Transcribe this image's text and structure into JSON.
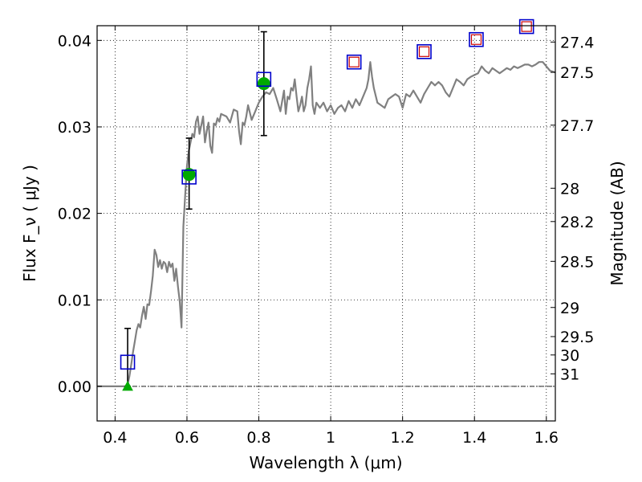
{
  "chart_data": {
    "type": "line",
    "xlabel": "Wavelength  λ (μm)",
    "ylabel_left": "Flux  F_ν  ( μJy )",
    "ylabel_right": "Magnitude (AB)",
    "xlim": [
      0.35,
      1.625
    ],
    "ylim": [
      -0.004,
      0.0417
    ],
    "grid": true,
    "x_ticks": [
      {
        "value": 0.4,
        "label": "0.4"
      },
      {
        "value": 0.6,
        "label": "0.6"
      },
      {
        "value": 0.8,
        "label": "0.8"
      },
      {
        "value": 1.0,
        "label": "1"
      },
      {
        "value": 1.2,
        "label": "1.2"
      },
      {
        "value": 1.4,
        "label": "1.4"
      },
      {
        "value": 1.6,
        "label": "1.6"
      }
    ],
    "y_ticks": [
      {
        "value": 0.0,
        "label": "0.00"
      },
      {
        "value": 0.01,
        "label": "0.01"
      },
      {
        "value": 0.02,
        "label": "0.02"
      },
      {
        "value": 0.03,
        "label": "0.03"
      },
      {
        "value": 0.04,
        "label": "0.04"
      }
    ],
    "mag_ticks": [
      {
        "mag": 27.4,
        "label": "27.4"
      },
      {
        "mag": 27.5,
        "label": "27.5"
      },
      {
        "mag": 27.7,
        "label": "27.7"
      },
      {
        "mag": 28.0,
        "label": "28"
      },
      {
        "mag": 28.2,
        "label": "28.2"
      },
      {
        "mag": 28.5,
        "label": "28.5"
      },
      {
        "mag": 29.0,
        "label": "29"
      },
      {
        "mag": 29.5,
        "label": "29.5"
      },
      {
        "mag": 30.0,
        "label": "30"
      },
      {
        "mag": 31.0,
        "label": "31"
      }
    ],
    "colors": {
      "spectrum": "#808080",
      "box_outer": "#0000cc",
      "box_inner": "#cc0000",
      "detection": "#00aa00",
      "errorbar": "#000000",
      "zero_line": "#000000"
    },
    "series": [
      {
        "kind": "spectrum",
        "points": [
          [
            0.35,
            0.0
          ],
          [
            0.43,
            0.0
          ],
          [
            0.435,
            0.0002
          ],
          [
            0.44,
            0.0012
          ],
          [
            0.445,
            0.0025
          ],
          [
            0.45,
            0.004
          ],
          [
            0.455,
            0.0052
          ],
          [
            0.46,
            0.0065
          ],
          [
            0.465,
            0.0072
          ],
          [
            0.47,
            0.0068
          ],
          [
            0.475,
            0.0082
          ],
          [
            0.48,
            0.0092
          ],
          [
            0.485,
            0.0078
          ],
          [
            0.49,
            0.0095
          ],
          [
            0.495,
            0.0094
          ],
          [
            0.5,
            0.011
          ],
          [
            0.505,
            0.0128
          ],
          [
            0.51,
            0.0158
          ],
          [
            0.515,
            0.0152
          ],
          [
            0.52,
            0.0138
          ],
          [
            0.525,
            0.0146
          ],
          [
            0.53,
            0.0136
          ],
          [
            0.535,
            0.0144
          ],
          [
            0.54,
            0.0142
          ],
          [
            0.545,
            0.0132
          ],
          [
            0.55,
            0.0144
          ],
          [
            0.555,
            0.0138
          ],
          [
            0.56,
            0.0142
          ],
          [
            0.565,
            0.0122
          ],
          [
            0.57,
            0.0136
          ],
          [
            0.575,
            0.0115
          ],
          [
            0.58,
            0.0098
          ],
          [
            0.585,
            0.0068
          ],
          [
            0.59,
            0.0185
          ],
          [
            0.595,
            0.022
          ],
          [
            0.6,
            0.0255
          ],
          [
            0.605,
            0.0272
          ],
          [
            0.61,
            0.0282
          ],
          [
            0.615,
            0.0292
          ],
          [
            0.62,
            0.0288
          ],
          [
            0.625,
            0.0306
          ],
          [
            0.63,
            0.0312
          ],
          [
            0.635,
            0.0292
          ],
          [
            0.64,
            0.0302
          ],
          [
            0.645,
            0.0312
          ],
          [
            0.65,
            0.0282
          ],
          [
            0.655,
            0.0295
          ],
          [
            0.66,
            0.0305
          ],
          [
            0.665,
            0.0278
          ],
          [
            0.67,
            0.027
          ],
          [
            0.675,
            0.0304
          ],
          [
            0.68,
            0.0302
          ],
          [
            0.685,
            0.031
          ],
          [
            0.69,
            0.0306
          ],
          [
            0.695,
            0.0315
          ],
          [
            0.7,
            0.0314
          ],
          [
            0.71,
            0.0312
          ],
          [
            0.72,
            0.0305
          ],
          [
            0.73,
            0.032
          ],
          [
            0.74,
            0.0318
          ],
          [
            0.745,
            0.0295
          ],
          [
            0.75,
            0.028
          ],
          [
            0.755,
            0.0305
          ],
          [
            0.76,
            0.0302
          ],
          [
            0.765,
            0.0312
          ],
          [
            0.77,
            0.0325
          ],
          [
            0.78,
            0.0308
          ],
          [
            0.79,
            0.0318
          ],
          [
            0.8,
            0.0328
          ],
          [
            0.81,
            0.0335
          ],
          [
            0.82,
            0.034
          ],
          [
            0.83,
            0.0338
          ],
          [
            0.84,
            0.0345
          ],
          [
            0.85,
            0.0332
          ],
          [
            0.86,
            0.0318
          ],
          [
            0.87,
            0.0342
          ],
          [
            0.875,
            0.0315
          ],
          [
            0.88,
            0.0335
          ],
          [
            0.885,
            0.0332
          ],
          [
            0.89,
            0.0345
          ],
          [
            0.895,
            0.0342
          ],
          [
            0.9,
            0.0355
          ],
          [
            0.905,
            0.0335
          ],
          [
            0.91,
            0.0318
          ],
          [
            0.915,
            0.0325
          ],
          [
            0.92,
            0.0335
          ],
          [
            0.925,
            0.0318
          ],
          [
            0.93,
            0.0325
          ],
          [
            0.935,
            0.0345
          ],
          [
            0.94,
            0.0355
          ],
          [
            0.945,
            0.037
          ],
          [
            0.95,
            0.0325
          ],
          [
            0.955,
            0.0315
          ],
          [
            0.96,
            0.0328
          ],
          [
            0.97,
            0.0322
          ],
          [
            0.98,
            0.0328
          ],
          [
            0.99,
            0.0318
          ],
          [
            1.0,
            0.0325
          ],
          [
            1.01,
            0.0315
          ],
          [
            1.02,
            0.0322
          ],
          [
            1.03,
            0.0325
          ],
          [
            1.04,
            0.0318
          ],
          [
            1.05,
            0.033
          ],
          [
            1.06,
            0.0322
          ],
          [
            1.07,
            0.0332
          ],
          [
            1.08,
            0.0325
          ],
          [
            1.09,
            0.0335
          ],
          [
            1.1,
            0.0345
          ],
          [
            1.105,
            0.0355
          ],
          [
            1.11,
            0.0375
          ],
          [
            1.115,
            0.0358
          ],
          [
            1.12,
            0.0345
          ],
          [
            1.13,
            0.0328
          ],
          [
            1.14,
            0.0325
          ],
          [
            1.15,
            0.0322
          ],
          [
            1.16,
            0.0332
          ],
          [
            1.17,
            0.0335
          ],
          [
            1.18,
            0.0338
          ],
          [
            1.19,
            0.0335
          ],
          [
            1.2,
            0.0322
          ],
          [
            1.21,
            0.0338
          ],
          [
            1.22,
            0.0335
          ],
          [
            1.23,
            0.0342
          ],
          [
            1.24,
            0.0335
          ],
          [
            1.25,
            0.0328
          ],
          [
            1.26,
            0.0338
          ],
          [
            1.27,
            0.0345
          ],
          [
            1.28,
            0.0352
          ],
          [
            1.29,
            0.0348
          ],
          [
            1.3,
            0.0352
          ],
          [
            1.31,
            0.0348
          ],
          [
            1.32,
            0.034
          ],
          [
            1.33,
            0.0335
          ],
          [
            1.34,
            0.0345
          ],
          [
            1.35,
            0.0355
          ],
          [
            1.36,
            0.0352
          ],
          [
            1.37,
            0.0348
          ],
          [
            1.38,
            0.0355
          ],
          [
            1.39,
            0.0358
          ],
          [
            1.4,
            0.036
          ],
          [
            1.41,
            0.0362
          ],
          [
            1.42,
            0.037
          ],
          [
            1.43,
            0.0365
          ],
          [
            1.44,
            0.0362
          ],
          [
            1.45,
            0.0368
          ],
          [
            1.46,
            0.0365
          ],
          [
            1.47,
            0.0362
          ],
          [
            1.48,
            0.0365
          ],
          [
            1.49,
            0.0368
          ],
          [
            1.5,
            0.0366
          ],
          [
            1.51,
            0.037
          ],
          [
            1.52,
            0.0368
          ],
          [
            1.53,
            0.037
          ],
          [
            1.54,
            0.0372
          ],
          [
            1.55,
            0.0372
          ],
          [
            1.56,
            0.037
          ],
          [
            1.57,
            0.0372
          ],
          [
            1.58,
            0.0375
          ],
          [
            1.59,
            0.0375
          ],
          [
            1.6,
            0.037
          ],
          [
            1.61,
            0.0365
          ],
          [
            1.625,
            0.0363
          ]
        ]
      },
      {
        "kind": "model_photometry_boxes",
        "points": [
          {
            "x": 0.435,
            "y": 0.0028
          },
          {
            "x": 0.606,
            "y": 0.0242
          },
          {
            "x": 0.814,
            "y": 0.0355
          },
          {
            "x": 1.065,
            "y": 0.0375
          },
          {
            "x": 1.26,
            "y": 0.0387
          },
          {
            "x": 1.405,
            "y": 0.0401
          },
          {
            "x": 1.545,
            "y": 0.0416
          }
        ],
        "inner_red_from_index": 3
      },
      {
        "kind": "detections",
        "points": [
          {
            "x": 0.606,
            "y": 0.0245,
            "err_lo": 0.0205,
            "err_hi": 0.0287
          },
          {
            "x": 0.814,
            "y": 0.035,
            "err_lo": 0.029,
            "err_hi": 0.041
          }
        ]
      },
      {
        "kind": "upper_limit",
        "points": [
          {
            "x": 0.435,
            "y": 0.0,
            "err_hi": 0.0067
          }
        ]
      }
    ]
  }
}
